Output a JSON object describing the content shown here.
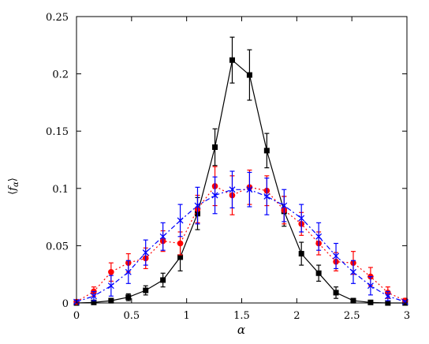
{
  "chart_data": {
    "type": "scatter",
    "title": "",
    "xlabel": "α",
    "ylabel": "⟨f_α⟩",
    "ylabel_parts": {
      "open": "⟨",
      "main": "f",
      "sub": "α",
      "close": "⟩"
    },
    "xlim": [
      0,
      3
    ],
    "ylim": [
      0,
      0.25
    ],
    "x_ticks": [
      0,
      0.5,
      1,
      1.5,
      2,
      2.5,
      3
    ],
    "x_tick_labels": [
      "0",
      "0.5",
      "1",
      "1.5",
      "2",
      "2.5",
      "3"
    ],
    "y_ticks": [
      0,
      0.05,
      0.1,
      0.15,
      0.2,
      0.25
    ],
    "y_tick_labels": [
      "0",
      "0.05",
      "0.1",
      "0.15",
      "0.2",
      "0.25"
    ],
    "grid": false,
    "legend": "none",
    "series": [
      {
        "color": "#000000",
        "marker": "square",
        "line": "solid",
        "x": [
          0,
          0.157,
          0.314,
          0.471,
          0.628,
          0.785,
          0.942,
          1.099,
          1.257,
          1.414,
          1.571,
          1.728,
          1.885,
          2.042,
          2.199,
          2.356,
          2.513,
          2.67,
          2.827,
          2.984
        ],
        "y": [
          0,
          0.0005,
          0.002,
          0.005,
          0.011,
          0.02,
          0.04,
          0.078,
          0.136,
          0.212,
          0.199,
          0.133,
          0.08,
          0.043,
          0.026,
          0.009,
          0.002,
          0.0005,
          0,
          0
        ],
        "err": [
          0,
          0.001,
          0.002,
          0.003,
          0.004,
          0.006,
          0.012,
          0.014,
          0.016,
          0.02,
          0.022,
          0.015,
          0.013,
          0.01,
          0.007,
          0.005,
          0.002,
          0.001,
          0,
          0
        ]
      },
      {
        "color": "#ff0000",
        "marker": "circle",
        "line": "dotted",
        "x": [
          0,
          0.157,
          0.314,
          0.471,
          0.628,
          0.785,
          0.942,
          1.099,
          1.257,
          1.414,
          1.571,
          1.728,
          1.885,
          2.042,
          2.199,
          2.356,
          2.513,
          2.67,
          2.827,
          2.984
        ],
        "y": [
          0.001,
          0.01,
          0.027,
          0.035,
          0.039,
          0.054,
          0.052,
          0.082,
          0.102,
          0.094,
          0.101,
          0.098,
          0.081,
          0.069,
          0.052,
          0.036,
          0.035,
          0.023,
          0.009,
          0.002
        ],
        "err": [
          0.001,
          0.004,
          0.008,
          0.008,
          0.009,
          0.009,
          0.01,
          0.012,
          0.017,
          0.017,
          0.015,
          0.013,
          0.012,
          0.01,
          0.01,
          0.008,
          0.01,
          0.008,
          0.005,
          0.002
        ]
      },
      {
        "color": "#0000ff",
        "marker": "x",
        "line": "dashdot",
        "x": [
          0,
          0.157,
          0.314,
          0.471,
          0.628,
          0.785,
          0.942,
          1.099,
          1.257,
          1.414,
          1.571,
          1.728,
          1.885,
          2.042,
          2.199,
          2.356,
          2.513,
          2.67,
          2.827,
          2.984
        ],
        "y": [
          0.001,
          0.006,
          0.015,
          0.027,
          0.044,
          0.058,
          0.072,
          0.085,
          0.094,
          0.099,
          0.099,
          0.093,
          0.085,
          0.074,
          0.058,
          0.041,
          0.027,
          0.015,
          0.006,
          0.001
        ],
        "err": [
          0.001,
          0.004,
          0.009,
          0.01,
          0.011,
          0.012,
          0.014,
          0.016,
          0.016,
          0.016,
          0.015,
          0.016,
          0.014,
          0.012,
          0.012,
          0.011,
          0.01,
          0.008,
          0.004,
          0.001
        ]
      }
    ]
  }
}
